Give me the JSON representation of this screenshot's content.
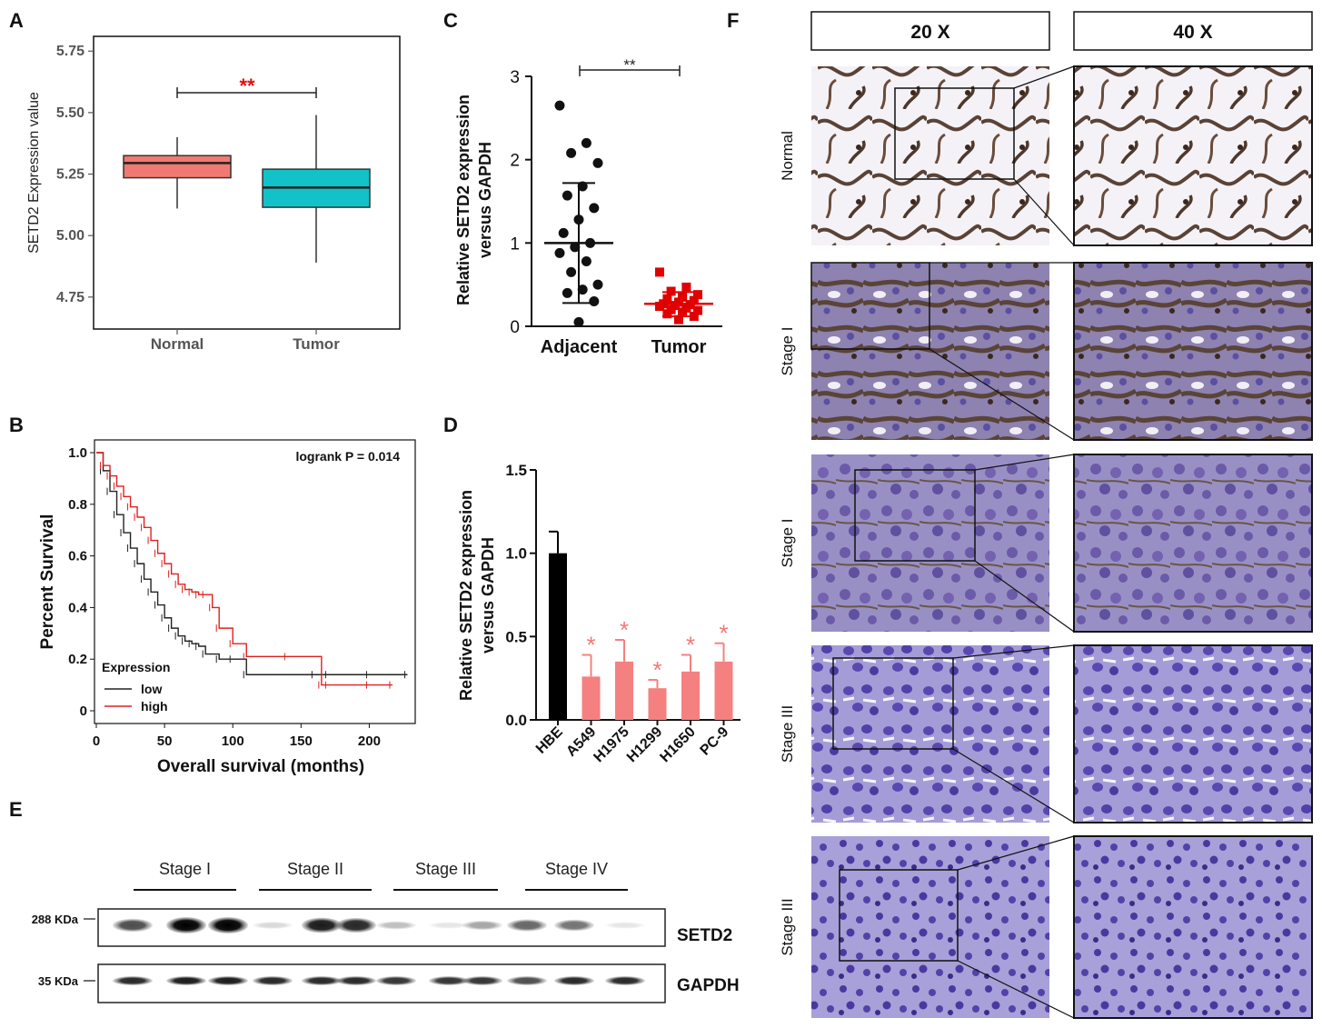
{
  "panel_labels": {
    "A": "A",
    "B": "B",
    "C": "C",
    "D": "D",
    "E": "E",
    "F": "F"
  },
  "chart_data": [
    {
      "panel": "A",
      "type": "box",
      "ylabel": "SETD2 Expression value",
      "ylim": [
        4.62,
        5.81
      ],
      "yticks": [
        "4.75",
        "5.00",
        "5.25",
        "5.50",
        "5.75"
      ],
      "categories": [
        "Normal",
        "Tumor"
      ],
      "boxes": [
        {
          "category": "Normal",
          "min": 5.11,
          "q1": 5.235,
          "median": 5.295,
          "q3": 5.325,
          "max": 5.4,
          "color": "#F07a72"
        },
        {
          "category": "Tumor",
          "min": 4.89,
          "q1": 5.115,
          "median": 5.195,
          "q3": 5.27,
          "max": 5.49,
          "color": "#12c2c8"
        }
      ],
      "significance": "**"
    },
    {
      "panel": "B",
      "type": "line",
      "xlabel": "Overall survival (months)",
      "ylabel": "Percent Survival",
      "xlim": [
        0,
        235
      ],
      "ylim": [
        0,
        1.0
      ],
      "xticks": [
        "0",
        "50",
        "100",
        "150",
        "200"
      ],
      "yticks": [
        "0",
        "0.2",
        "0.4",
        "0.6",
        "0.8",
        "1.0"
      ],
      "annotation": "logrank P = 0.014",
      "legend_title": "Expression",
      "series": [
        {
          "name": "low",
          "color": "#222222",
          "x": [
            0,
            5,
            10,
            15,
            20,
            25,
            30,
            35,
            40,
            45,
            50,
            55,
            60,
            65,
            70,
            75,
            80,
            90,
            100,
            110,
            160,
            170,
            200,
            228
          ],
          "y": [
            1.0,
            0.93,
            0.85,
            0.76,
            0.69,
            0.63,
            0.57,
            0.51,
            0.46,
            0.41,
            0.36,
            0.32,
            0.29,
            0.27,
            0.26,
            0.25,
            0.22,
            0.2,
            0.2,
            0.14,
            0.14,
            0.14,
            0.14,
            0.14
          ]
        },
        {
          "name": "high",
          "color": "#E02020",
          "x": [
            0,
            5,
            10,
            15,
            20,
            25,
            30,
            35,
            40,
            45,
            50,
            55,
            60,
            65,
            70,
            75,
            80,
            85,
            90,
            100,
            110,
            140,
            165,
            170,
            200,
            217
          ],
          "y": [
            1.0,
            0.95,
            0.91,
            0.87,
            0.83,
            0.79,
            0.75,
            0.71,
            0.66,
            0.61,
            0.57,
            0.53,
            0.49,
            0.47,
            0.46,
            0.45,
            0.45,
            0.4,
            0.32,
            0.26,
            0.21,
            0.21,
            0.1,
            0.1,
            0.1,
            0.1
          ]
        }
      ]
    },
    {
      "panel": "C",
      "type": "scatter",
      "ylabel": "Relative SETD2 expression versus GAPDH",
      "ylim": [
        0,
        3
      ],
      "yticks": [
        "0",
        "1",
        "2",
        "3"
      ],
      "categories": [
        "Adjacent",
        "Tumor"
      ],
      "series": [
        {
          "name": "Adjacent",
          "color": "#111111",
          "marker": "circle",
          "mean": 1.0,
          "sd_low": 0.28,
          "sd_high": 1.72,
          "values": [
            2.65,
            2.2,
            2.08,
            1.96,
            1.68,
            1.57,
            1.42,
            1.28,
            1.12,
            1.0,
            0.95,
            0.88,
            0.78,
            0.65,
            0.5,
            0.44,
            0.4,
            0.3,
            0.05
          ]
        },
        {
          "name": "Tumor",
          "color": "#E00000",
          "marker": "square",
          "mean": 0.27,
          "sd_low": 0.12,
          "sd_high": 0.41,
          "values": [
            0.65,
            0.47,
            0.42,
            0.38,
            0.35,
            0.33,
            0.31,
            0.29,
            0.27,
            0.26,
            0.25,
            0.24,
            0.22,
            0.2,
            0.19,
            0.17,
            0.15,
            0.12,
            0.08
          ]
        }
      ],
      "significance": "**"
    },
    {
      "panel": "D",
      "type": "bar",
      "ylabel": "Relative SETD2 expression versus GAPDH",
      "ylim": [
        0,
        1.5
      ],
      "yticks": [
        "0.0",
        "0.5",
        "1.0",
        "1.5"
      ],
      "categories": [
        "HBE",
        "A549",
        "H1975",
        "H1299",
        "H1650",
        "PC-9"
      ],
      "values": [
        1.0,
        0.26,
        0.35,
        0.19,
        0.29,
        0.35
      ],
      "errors": [
        0.13,
        0.13,
        0.13,
        0.05,
        0.1,
        0.11
      ],
      "colors": [
        "#000000",
        "#F58080",
        "#F58080",
        "#F58080",
        "#F58080",
        "#F58080"
      ],
      "significance": [
        "",
        "*",
        "*",
        "*",
        "*",
        "*"
      ]
    }
  ],
  "blot": {
    "stage_labels": [
      "Stage I",
      "Stage II",
      "Stage III",
      "Stage IV"
    ],
    "marker_top": "288 KDa",
    "marker_bottom": "35 KDa",
    "protein_top": "SETD2",
    "protein_bottom": "GAPDH",
    "setd2_intensity": [
      0.7,
      1.0,
      1.0,
      0.15,
      0.9,
      0.85,
      0.25,
      0.1,
      0.35,
      0.6,
      0.55,
      0.1
    ],
    "gapdh_intensity": [
      0.85,
      0.9,
      0.9,
      0.85,
      0.85,
      0.85,
      0.8,
      0.8,
      0.8,
      0.7,
      0.85,
      0.85
    ]
  },
  "histology": {
    "col_headers": [
      "20 X",
      "40 X"
    ],
    "row_labels": [
      "Normal",
      "Stage I",
      "Stage I",
      "Stage III",
      "Stage III"
    ]
  }
}
